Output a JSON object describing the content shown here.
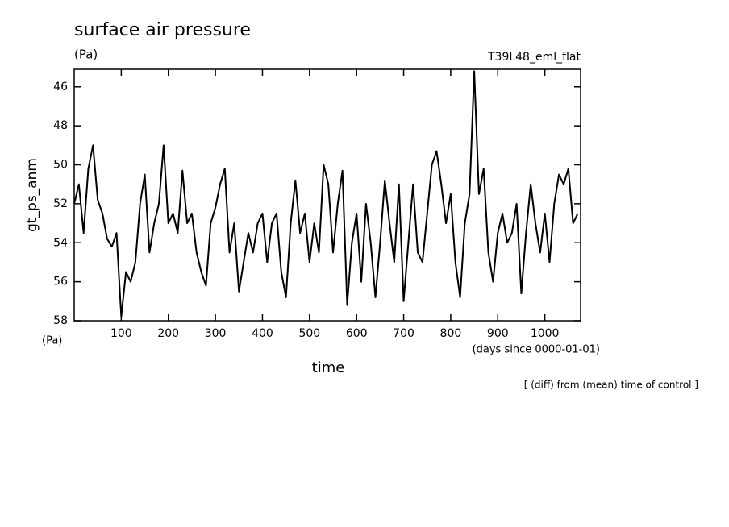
{
  "chart_data": {
    "type": "line",
    "title": "surface air pressure",
    "units_top": "(Pa)",
    "run_name": "T39L48_eml_flat",
    "y_label": "gt_ps_anm",
    "units_bottom": "(Pa)",
    "x_label": "time",
    "x_units": "(days since 0000-01-01)",
    "footnote": "[ (diff) from (mean) time of control ]",
    "y_inverted": true,
    "xlim": [
      0,
      1076
    ],
    "ylim": [
      45.1,
      58
    ],
    "xticks": [
      100,
      200,
      300,
      400,
      500,
      600,
      700,
      800,
      900,
      1000
    ],
    "yticks": [
      46,
      48,
      50,
      52,
      54,
      56,
      58
    ],
    "series": [
      {
        "color": "#000000",
        "x": [
          0,
          10,
          20,
          30,
          40,
          50,
          60,
          70,
          80,
          90,
          100,
          110,
          120,
          130,
          140,
          150,
          160,
          170,
          180,
          190,
          200,
          210,
          220,
          230,
          240,
          250,
          260,
          270,
          280,
          290,
          300,
          310,
          320,
          330,
          340,
          350,
          360,
          370,
          380,
          390,
          400,
          410,
          420,
          430,
          440,
          450,
          460,
          470,
          480,
          490,
          500,
          510,
          520,
          530,
          540,
          550,
          560,
          570,
          580,
          590,
          600,
          610,
          620,
          630,
          640,
          650,
          660,
          670,
          680,
          690,
          700,
          710,
          720,
          730,
          740,
          750,
          760,
          770,
          780,
          790,
          800,
          810,
          820,
          830,
          840,
          850,
          860,
          870,
          880,
          890,
          900,
          910,
          920,
          930,
          940,
          950,
          960,
          970,
          980,
          990,
          1000,
          1010,
          1020,
          1030,
          1040,
          1050,
          1060,
          1070
        ],
        "values": [
          52,
          51,
          53.5,
          50.2,
          49,
          51.8,
          52.5,
          53.8,
          54.2,
          53.5,
          57.8,
          55.5,
          56,
          55,
          52,
          50.5,
          54.5,
          53,
          52,
          49,
          53,
          52.5,
          53.5,
          50.3,
          53,
          52.5,
          54.5,
          55.5,
          56.2,
          53,
          52.2,
          51,
          50.2,
          54.5,
          53,
          56.5,
          55,
          53.5,
          54.5,
          53,
          52.5,
          55,
          53,
          52.5,
          55.5,
          56.8,
          53,
          50.8,
          53.5,
          52.5,
          55,
          53,
          54.5,
          50,
          51,
          54.5,
          52,
          50.3,
          57.2,
          54,
          52.5,
          56,
          52,
          54,
          56.8,
          54,
          50.8,
          53,
          55,
          51,
          57,
          54,
          51,
          54.5,
          55,
          52.5,
          50,
          49.3,
          51,
          53,
          51.5,
          55,
          56.8,
          53,
          51.5,
          45.2,
          51.5,
          50.2,
          54.5,
          56,
          53.5,
          52.5,
          54,
          53.5,
          52,
          56.6,
          53.5,
          51,
          53,
          54.5,
          52.5,
          55,
          52,
          50.5,
          51,
          50.2,
          53,
          52.5
        ]
      }
    ]
  }
}
